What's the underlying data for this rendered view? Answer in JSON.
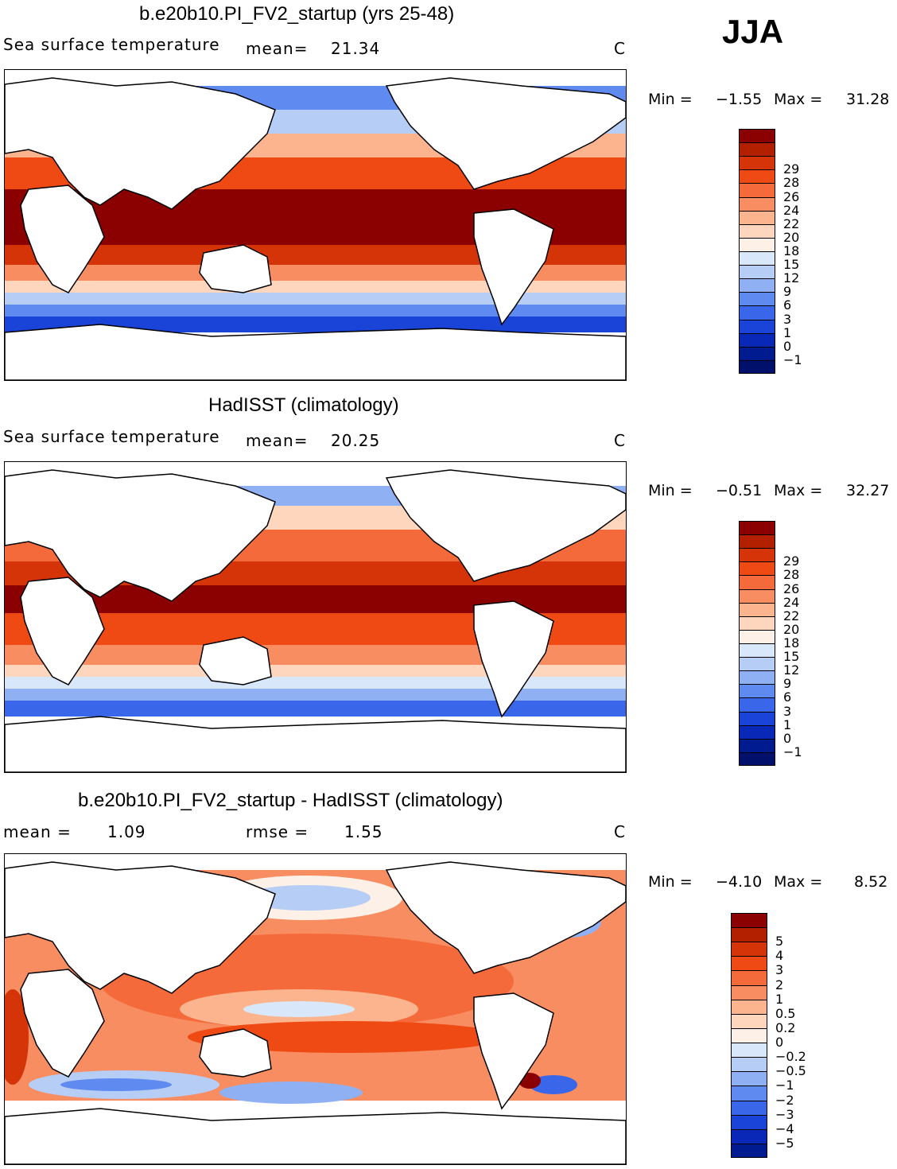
{
  "season": "JJA",
  "units_label": "C",
  "panels": [
    {
      "title": "b.e20b10.PI_FV2_startup (yrs 25-48)",
      "variable": "Sea surface temperature",
      "mean_label": "mean=",
      "mean_value": "21.34",
      "units": "C",
      "min_label": "Min =",
      "min_value": "−1.55",
      "max_label": "Max =",
      "max_value": "31.28",
      "colorbar_labels": [
        "29",
        "28",
        "26",
        "24",
        "22",
        "20",
        "18",
        "15",
        "12",
        "9",
        "6",
        "3",
        "1",
        "0",
        "−1"
      ],
      "colorbar_colors": [
        "#8b0000",
        "#b22000",
        "#d43408",
        "#ef4a14",
        "#f56a3a",
        "#f98d62",
        "#fbb48e",
        "#fdd6bd",
        "#fdf0e6",
        "#d8e8fa",
        "#b6cdf6",
        "#8fb0f2",
        "#5f8af0",
        "#3a66ea",
        "#1a44d8",
        "#0a28b8",
        "#001a90",
        "#00106b"
      ]
    },
    {
      "title": "HadISST (climatology)",
      "variable": "Sea surface temperature",
      "mean_label": "mean=",
      "mean_value": "20.25",
      "units": "C",
      "min_label": "Min =",
      "min_value": "−0.51",
      "max_label": "Max =",
      "max_value": "32.27",
      "colorbar_labels": [
        "29",
        "28",
        "26",
        "24",
        "22",
        "20",
        "18",
        "15",
        "12",
        "9",
        "6",
        "3",
        "1",
        "0",
        "−1"
      ],
      "colorbar_colors": [
        "#8b0000",
        "#b22000",
        "#d43408",
        "#ef4a14",
        "#f56a3a",
        "#f98d62",
        "#fbb48e",
        "#fdd6bd",
        "#fdf0e6",
        "#d8e8fa",
        "#b6cdf6",
        "#8fb0f2",
        "#5f8af0",
        "#3a66ea",
        "#1a44d8",
        "#0a28b8",
        "#001a90",
        "#00106b"
      ]
    },
    {
      "title": "b.e20b10.PI_FV2_startup - HadISST (climatology)",
      "mean_label": "mean =",
      "mean_value": "1.09",
      "rmse_label": "rmse =",
      "rmse_value": "1.55",
      "units": "C",
      "min_label": "Min =",
      "min_value": "−4.10",
      "max_label": "Max =",
      "max_value": "8.52",
      "colorbar_labels": [
        "5",
        "4",
        "3",
        "2",
        "1",
        "0.5",
        "0.2",
        "0",
        "−0.2",
        "−0.5",
        "−1",
        "−2",
        "−3",
        "−4",
        "−5"
      ],
      "colorbar_colors": [
        "#8b0000",
        "#b22000",
        "#d43408",
        "#ef4a14",
        "#f56a3a",
        "#f98d62",
        "#fbb48e",
        "#fdd6bd",
        "#fdf0e6",
        "#d8e8fa",
        "#b6cdf6",
        "#8fb0f2",
        "#5f8af0",
        "#3a66ea",
        "#1a44d8",
        "#0a28b8",
        "#001a90"
      ]
    }
  ]
}
